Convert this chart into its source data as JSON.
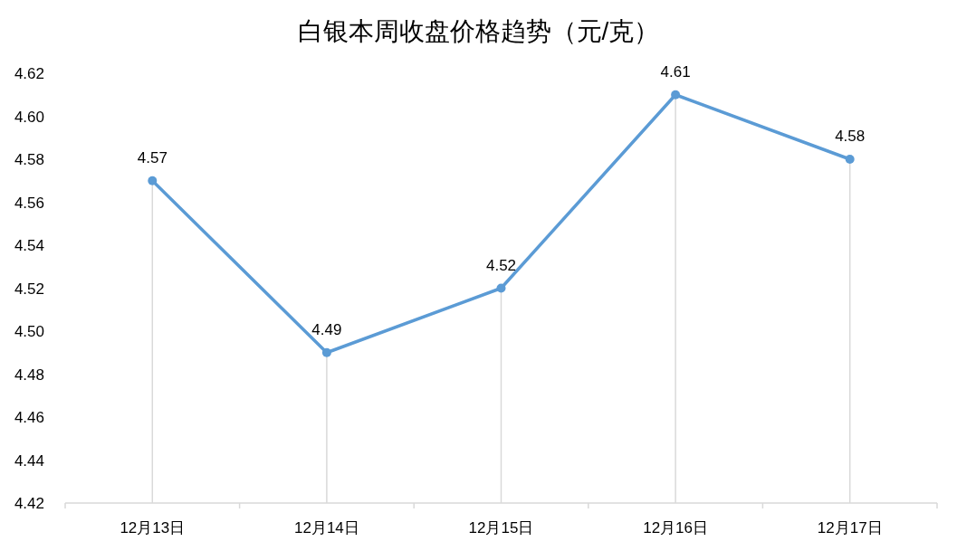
{
  "chart_data": {
    "type": "line",
    "title": "白银本周收盘价格趋势（元/克）",
    "categories": [
      "12月13日",
      "12月14日",
      "12月15日",
      "12月16日",
      "12月17日"
    ],
    "values": [
      4.57,
      4.49,
      4.52,
      4.61,
      4.58
    ],
    "color": "#5b9bd5",
    "ylim": [
      4.42,
      4.62
    ],
    "yticks": [
      4.42,
      4.44,
      4.46,
      4.48,
      {
        "value": 4.5,
        "label": "4.50"
      },
      4.52,
      4.54,
      4.56,
      4.58,
      {
        "value": 4.6,
        "label": "4.60"
      },
      4.62
    ],
    "grid": "x",
    "marker": "circle",
    "data_labels": true
  }
}
